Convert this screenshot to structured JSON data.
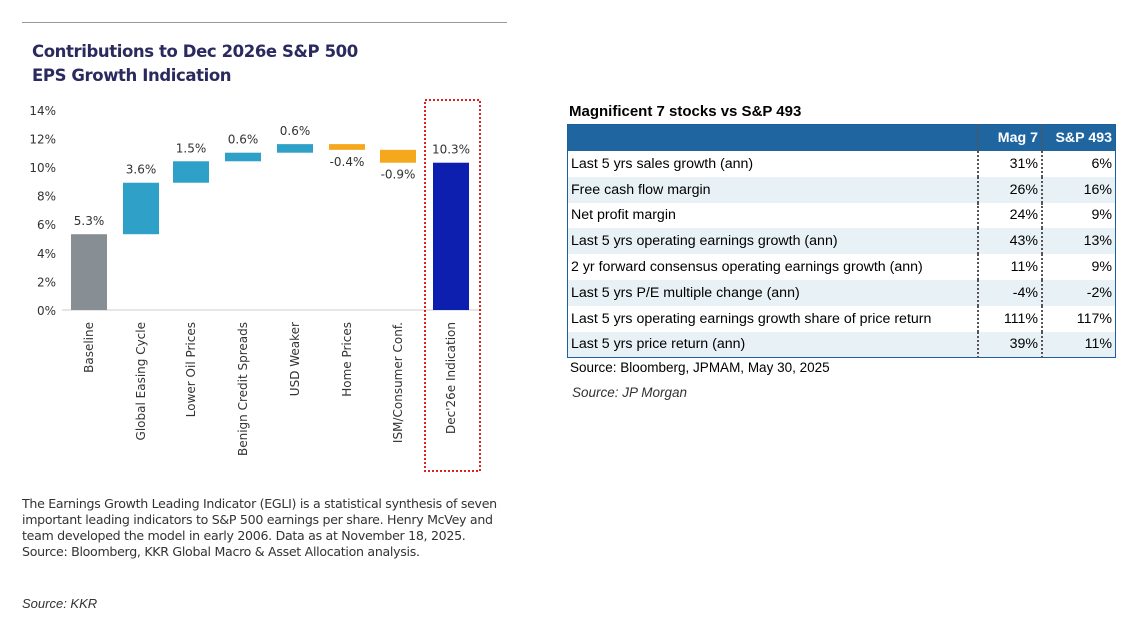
{
  "left": {
    "title_line1": "Contributions to Dec 2026e S&P 500",
    "title_line2": "EPS Growth Indication",
    "note": "The Earnings Growth Leading Indicator (EGLI) is a statistical synthesis of seven important leading indicators to S&P 500 earnings per share. Henry McVey and team developed the model in early 2006. Data as at November 18, 2025. Source: Bloomberg, KKR Global Macro & Asset Allocation analysis.",
    "source": "Source: KKR"
  },
  "chart_data": {
    "type": "bar",
    "subtype": "waterfall",
    "title": "Contributions to Dec 2026e S&P 500 EPS Growth Indication",
    "categories": [
      "Baseline",
      "Global Easing Cycle",
      "Lower Oil Prices",
      "Benign Credit Spreads",
      "USD Weaker",
      "Home Prices",
      "ISM/Consumer Conf.",
      "Dec'26e Indication"
    ],
    "values": [
      5.3,
      3.6,
      1.5,
      0.6,
      0.6,
      -0.4,
      -0.9,
      10.3
    ],
    "labels": [
      "5.3%",
      "3.6%",
      "1.5%",
      "0.6%",
      "0.6%",
      "-0.4%",
      "-0.9%",
      "10.3%"
    ],
    "kinds": [
      "total",
      "up",
      "up",
      "up",
      "up",
      "down",
      "down",
      "total"
    ],
    "yticks": [
      "0%",
      "2%",
      "4%",
      "6%",
      "8%",
      "10%",
      "12%",
      "14%"
    ],
    "ylim": [
      0,
      14
    ],
    "colors": {
      "baseline": "#878f94",
      "up": "#2fa1c9",
      "down": "#f5a81c",
      "final": "#0c1fae",
      "highlight": "#e02020"
    }
  },
  "right": {
    "title": "Magnificent 7 stocks vs S&P 493",
    "headers": [
      "",
      "Mag 7",
      "S&P 493"
    ],
    "rows": [
      [
        "Last 5 yrs sales growth (ann)",
        "31%",
        "6%"
      ],
      [
        "Free cash flow margin",
        "26%",
        "16%"
      ],
      [
        "Net profit margin",
        "24%",
        "9%"
      ],
      [
        "Last 5 yrs operating earnings growth (ann)",
        "43%",
        "13%"
      ],
      [
        "2 yr forward consensus operating earnings growth (ann)",
        "11%",
        "9%"
      ],
      [
        "Last 5 yrs P/E multiple change (ann)",
        "-4%",
        "-2%"
      ],
      [
        "Last 5 yrs operating earnings growth share of price return",
        "111%",
        "117%"
      ],
      [
        "Last 5 yrs price return (ann)",
        "39%",
        "11%"
      ]
    ],
    "source": "Source: Bloomberg, JPMAM, May 30, 2025",
    "source2": "Source: JP Morgan"
  }
}
